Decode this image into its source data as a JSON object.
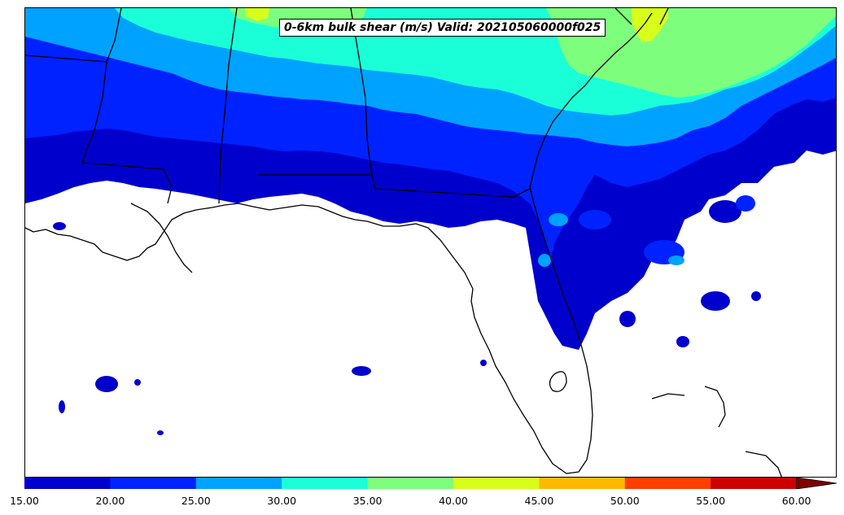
{
  "title": "0-6km bulk shear (m/s) Valid: 202105060000f025",
  "colorbar": {
    "levels": [
      "15.00",
      "20.00",
      "25.00",
      "30.00",
      "35.00",
      "40.00",
      "45.00",
      "50.00",
      "55.00",
      "60.00"
    ],
    "colors": [
      "#0000cd",
      "#0022ff",
      "#00a2ff",
      "#1affd8",
      "#7dff7d",
      "#d8ff1a",
      "#ffb900",
      "#ff3f00",
      "#cd0000"
    ],
    "extend_color": "#800000",
    "extend": "max"
  },
  "map": {
    "region": "southeastern United States",
    "coastline_color": "#000000",
    "ocean_background": "#ffffff"
  }
}
